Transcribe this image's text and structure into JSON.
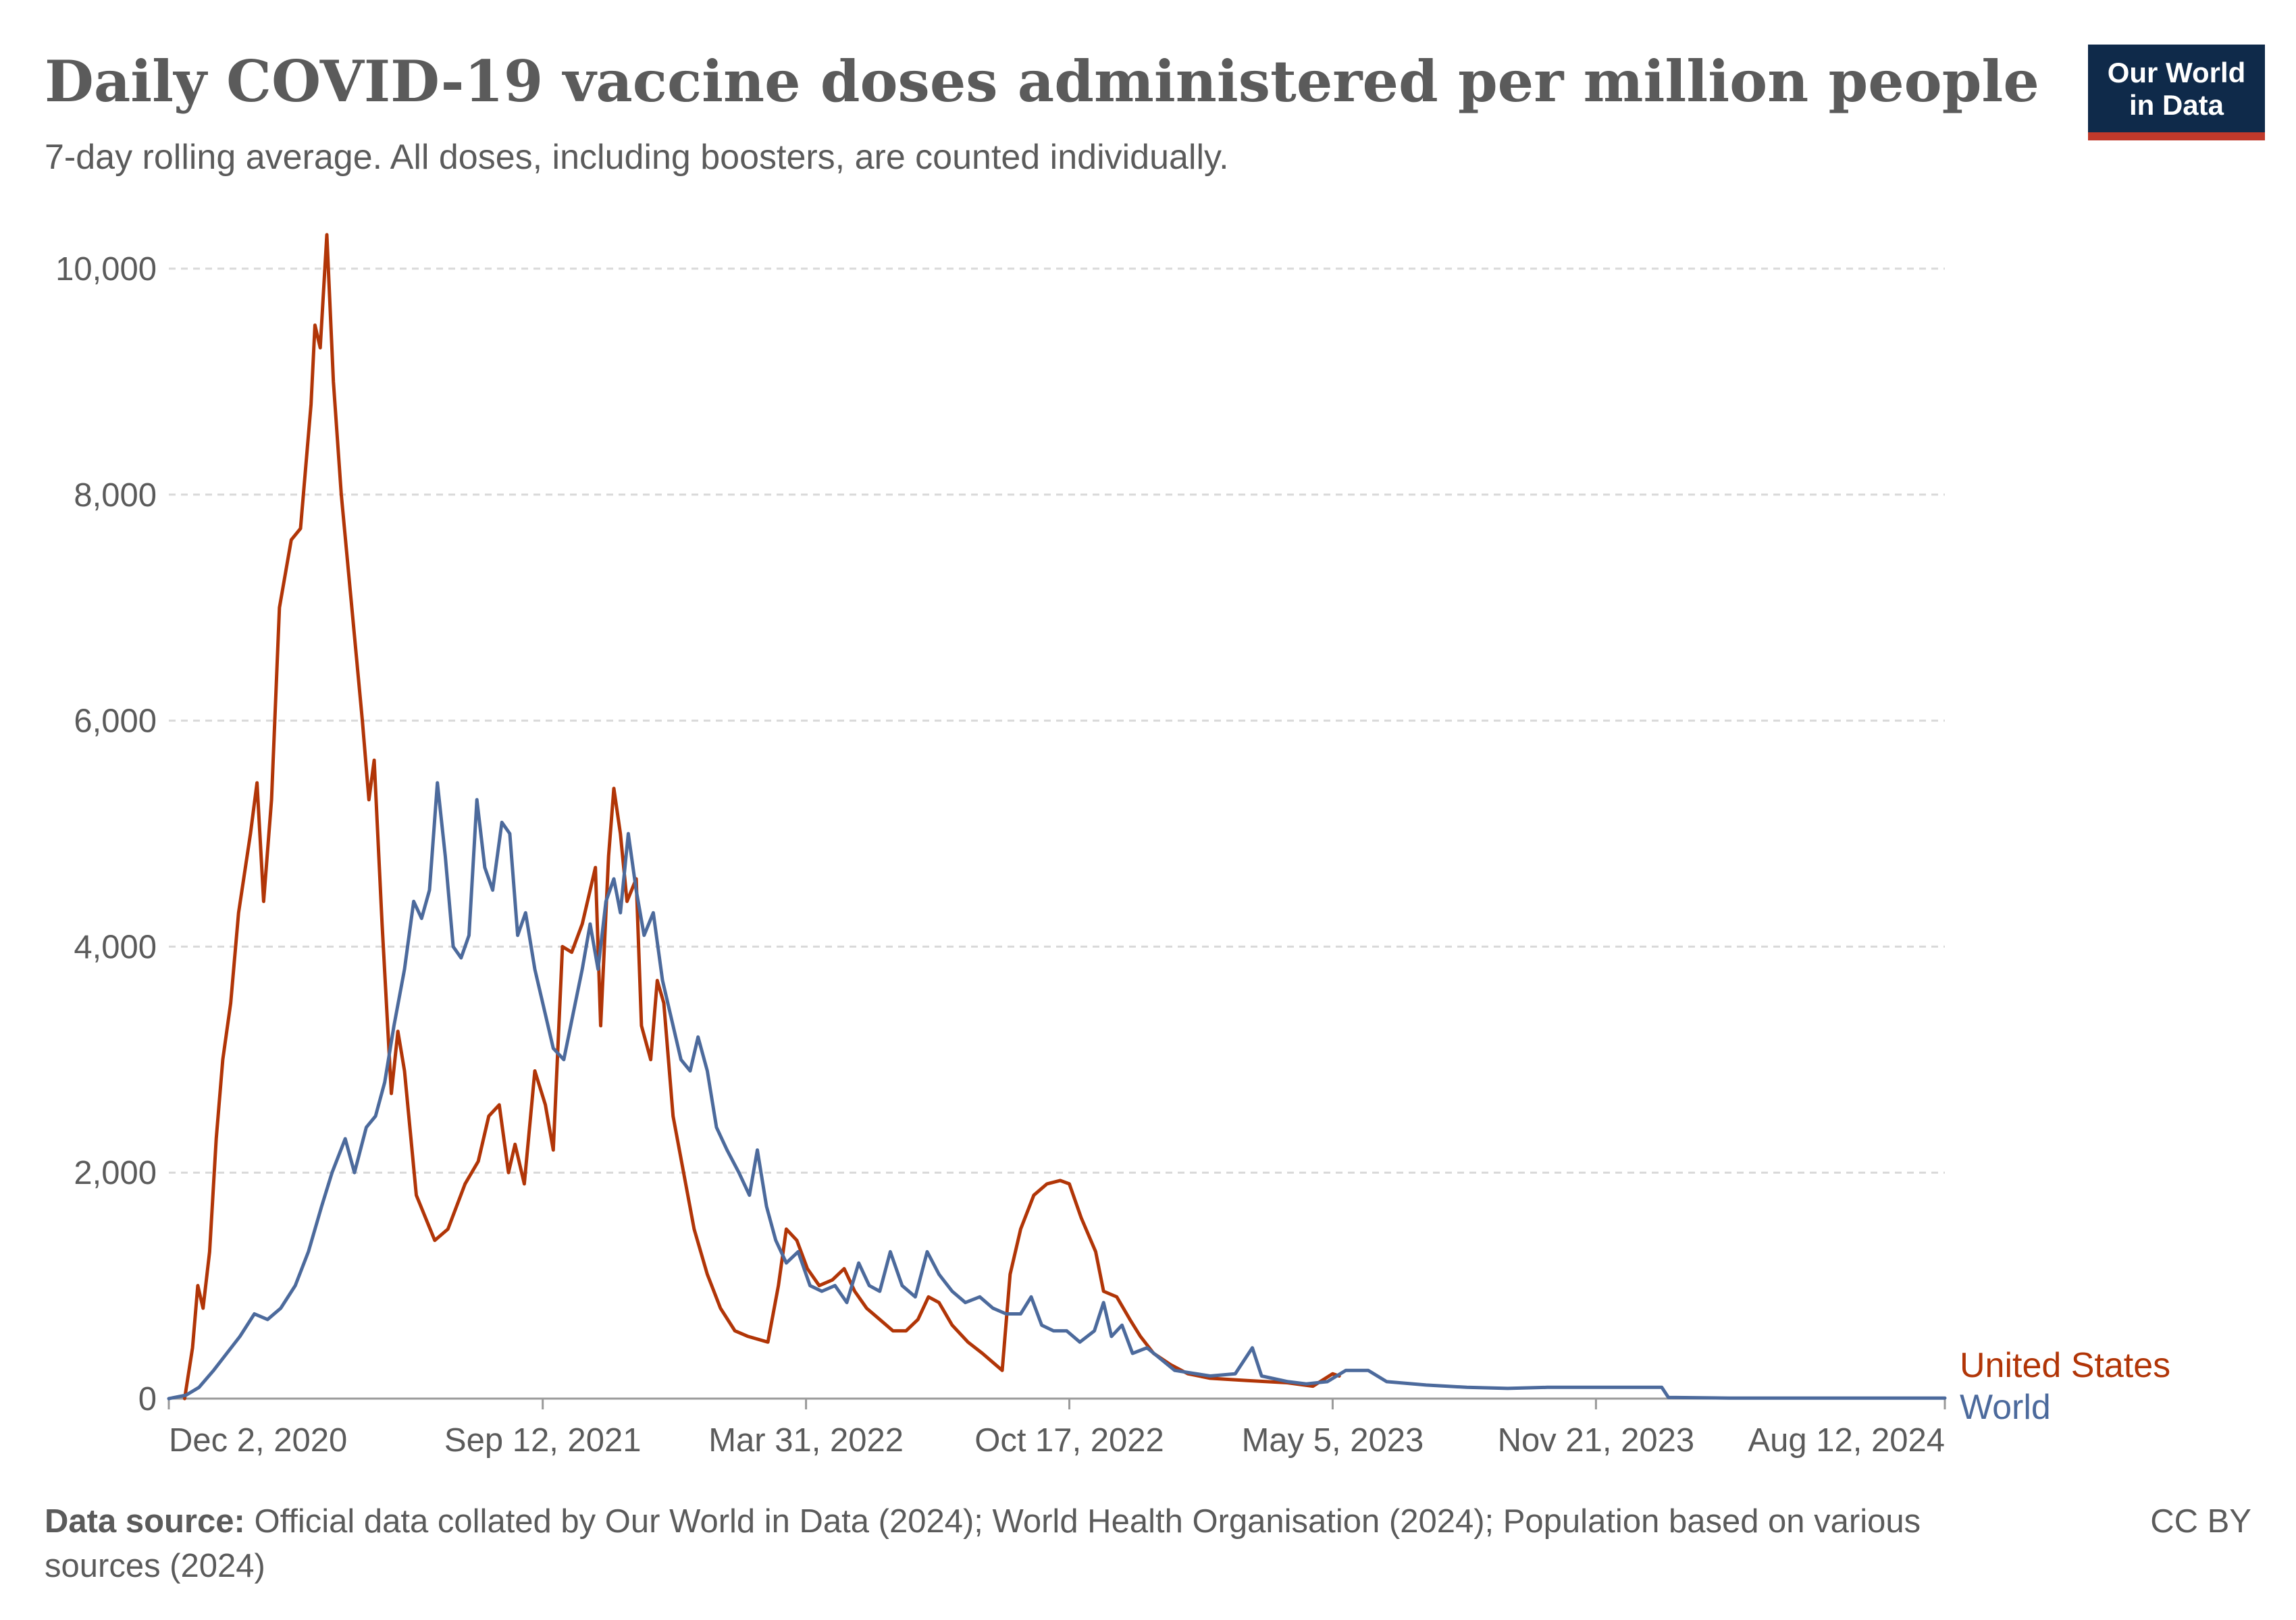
{
  "header": {
    "title": "Daily COVID-19 vaccine doses administered per million people",
    "subtitle": "7-day rolling average. All doses, including boosters, are counted individually."
  },
  "logo": {
    "line1": "Our World",
    "line2": "in Data",
    "background": "#0f2a4a",
    "accent": "#c0392b"
  },
  "footer": {
    "source_label": "Data source:",
    "source_line1": "Official data collated by Our World in Data (2024); World Health Organisation (2024); Population based on various",
    "source_line2": "sources (2024)",
    "license": "CC BY"
  },
  "chart_data": {
    "type": "line",
    "xlim": [
      "2020-12-02",
      "2024-08-12"
    ],
    "ylim": [
      0,
      10000
    ],
    "x_ticks": [
      "Dec 2, 2020",
      "Sep 12, 2021",
      "Mar 31, 2022",
      "Oct 17, 2022",
      "May 5, 2023",
      "Nov 21, 2023",
      "Aug 12, 2024"
    ],
    "x_tick_dates": [
      "2020-12-02",
      "2021-09-12",
      "2022-03-31",
      "2022-10-17",
      "2023-05-05",
      "2023-11-21",
      "2024-08-12"
    ],
    "y_ticks": [
      0,
      2000,
      4000,
      6000,
      8000,
      10000
    ],
    "y_tick_labels": [
      "0",
      "2,000",
      "4,000",
      "6,000",
      "8,000",
      "10,000"
    ],
    "grid": "horizontal dashed",
    "legend": "right end of lines",
    "series": [
      {
        "name": "United States",
        "color": "#b13507",
        "points": [
          [
            "2020-12-14",
            0
          ],
          [
            "2020-12-20",
            450
          ],
          [
            "2020-12-24",
            1000
          ],
          [
            "2020-12-28",
            800
          ],
          [
            "2021-01-02",
            1300
          ],
          [
            "2021-01-07",
            2300
          ],
          [
            "2021-01-12",
            3000
          ],
          [
            "2021-01-18",
            3500
          ],
          [
            "2021-01-24",
            4300
          ],
          [
            "2021-02-02",
            5000
          ],
          [
            "2021-02-07",
            5450
          ],
          [
            "2021-02-12",
            4400
          ],
          [
            "2021-02-18",
            5300
          ],
          [
            "2021-02-24",
            7000
          ],
          [
            "2021-03-05",
            7600
          ],
          [
            "2021-03-12",
            7700
          ],
          [
            "2021-03-20",
            8800
          ],
          [
            "2021-03-23",
            9500
          ],
          [
            "2021-03-27",
            9300
          ],
          [
            "2021-04-01",
            10300
          ],
          [
            "2021-04-06",
            9000
          ],
          [
            "2021-04-12",
            8000
          ],
          [
            "2021-04-20",
            7000
          ],
          [
            "2021-04-28",
            6000
          ],
          [
            "2021-05-03",
            5300
          ],
          [
            "2021-05-07",
            5650
          ],
          [
            "2021-05-13",
            4200
          ],
          [
            "2021-05-20",
            2700
          ],
          [
            "2021-05-25",
            3250
          ],
          [
            "2021-05-30",
            2900
          ],
          [
            "2021-06-08",
            1800
          ],
          [
            "2021-06-22",
            1400
          ],
          [
            "2021-07-02",
            1500
          ],
          [
            "2021-07-15",
            1900
          ],
          [
            "2021-07-25",
            2100
          ],
          [
            "2021-08-02",
            2500
          ],
          [
            "2021-08-10",
            2600
          ],
          [
            "2021-08-17",
            2000
          ],
          [
            "2021-08-22",
            2250
          ],
          [
            "2021-08-29",
            1900
          ],
          [
            "2021-09-06",
            2900
          ],
          [
            "2021-09-14",
            2600
          ],
          [
            "2021-09-20",
            2200
          ],
          [
            "2021-09-27",
            4000
          ],
          [
            "2021-10-04",
            3950
          ],
          [
            "2021-10-12",
            4200
          ],
          [
            "2021-10-18",
            4500
          ],
          [
            "2021-10-22",
            4700
          ],
          [
            "2021-10-26",
            3300
          ],
          [
            "2021-11-01",
            4800
          ],
          [
            "2021-11-05",
            5400
          ],
          [
            "2021-11-10",
            5000
          ],
          [
            "2021-11-15",
            4400
          ],
          [
            "2021-11-22",
            4600
          ],
          [
            "2021-11-26",
            3300
          ],
          [
            "2021-12-03",
            3000
          ],
          [
            "2021-12-08",
            3700
          ],
          [
            "2021-12-13",
            3500
          ],
          [
            "2021-12-20",
            2500
          ],
          [
            "2021-12-28",
            2000
          ],
          [
            "2022-01-05",
            1500
          ],
          [
            "2022-01-15",
            1100
          ],
          [
            "2022-01-25",
            800
          ],
          [
            "2022-02-05",
            600
          ],
          [
            "2022-02-15",
            550
          ],
          [
            "2022-03-02",
            500
          ],
          [
            "2022-03-10",
            1000
          ],
          [
            "2022-03-16",
            1500
          ],
          [
            "2022-03-24",
            1400
          ],
          [
            "2022-04-01",
            1150
          ],
          [
            "2022-04-10",
            1000
          ],
          [
            "2022-04-20",
            1050
          ],
          [
            "2022-04-29",
            1150
          ],
          [
            "2022-05-07",
            950
          ],
          [
            "2022-05-16",
            800
          ],
          [
            "2022-05-26",
            700
          ],
          [
            "2022-06-05",
            600
          ],
          [
            "2022-06-15",
            600
          ],
          [
            "2022-06-24",
            700
          ],
          [
            "2022-07-02",
            900
          ],
          [
            "2022-07-10",
            850
          ],
          [
            "2022-07-20",
            650
          ],
          [
            "2022-08-01",
            500
          ],
          [
            "2022-08-12",
            400
          ],
          [
            "2022-08-22",
            300
          ],
          [
            "2022-08-27",
            250
          ],
          [
            "2022-09-02",
            1100
          ],
          [
            "2022-09-10",
            1500
          ],
          [
            "2022-09-20",
            1800
          ],
          [
            "2022-09-30",
            1900
          ],
          [
            "2022-10-10",
            1930
          ],
          [
            "2022-10-17",
            1900
          ],
          [
            "2022-10-26",
            1600
          ],
          [
            "2022-11-06",
            1300
          ],
          [
            "2022-11-12",
            950
          ],
          [
            "2022-11-22",
            900
          ],
          [
            "2022-12-02",
            700
          ],
          [
            "2022-12-10",
            550
          ],
          [
            "2022-12-20",
            400
          ],
          [
            "2023-01-02",
            300
          ],
          [
            "2023-01-15",
            220
          ],
          [
            "2023-02-01",
            180
          ],
          [
            "2023-03-01",
            160
          ],
          [
            "2023-04-01",
            140
          ],
          [
            "2023-04-20",
            110
          ],
          [
            "2023-05-05",
            220
          ],
          [
            "2023-05-10",
            200
          ]
        ]
      },
      {
        "name": "World",
        "color": "#4c6a9c",
        "points": [
          [
            "2020-12-02",
            0
          ],
          [
            "2020-12-15",
            30
          ],
          [
            "2020-12-25",
            100
          ],
          [
            "2021-01-05",
            250
          ],
          [
            "2021-01-15",
            400
          ],
          [
            "2021-01-25",
            550
          ],
          [
            "2021-02-05",
            750
          ],
          [
            "2021-02-15",
            700
          ],
          [
            "2021-02-25",
            800
          ],
          [
            "2021-03-08",
            1000
          ],
          [
            "2021-03-18",
            1300
          ],
          [
            "2021-03-28",
            1700
          ],
          [
            "2021-04-05",
            2000
          ],
          [
            "2021-04-15",
            2300
          ],
          [
            "2021-04-22",
            2000
          ],
          [
            "2021-05-01",
            2400
          ],
          [
            "2021-05-08",
            2500
          ],
          [
            "2021-05-15",
            2800
          ],
          [
            "2021-05-22",
            3300
          ],
          [
            "2021-05-30",
            3800
          ],
          [
            "2021-06-06",
            4400
          ],
          [
            "2021-06-12",
            4250
          ],
          [
            "2021-06-18",
            4500
          ],
          [
            "2021-06-24",
            5450
          ],
          [
            "2021-06-30",
            4800
          ],
          [
            "2021-07-06",
            4000
          ],
          [
            "2021-07-12",
            3900
          ],
          [
            "2021-07-18",
            4100
          ],
          [
            "2021-07-24",
            5300
          ],
          [
            "2021-07-30",
            4700
          ],
          [
            "2021-08-05",
            4500
          ],
          [
            "2021-08-12",
            5100
          ],
          [
            "2021-08-18",
            5000
          ],
          [
            "2021-08-24",
            4100
          ],
          [
            "2021-08-30",
            4300
          ],
          [
            "2021-09-06",
            3800
          ],
          [
            "2021-09-14",
            3400
          ],
          [
            "2021-09-20",
            3100
          ],
          [
            "2021-09-28",
            3000
          ],
          [
            "2021-10-05",
            3400
          ],
          [
            "2021-10-12",
            3800
          ],
          [
            "2021-10-18",
            4200
          ],
          [
            "2021-10-24",
            3800
          ],
          [
            "2021-10-30",
            4400
          ],
          [
            "2021-11-05",
            4600
          ],
          [
            "2021-11-10",
            4300
          ],
          [
            "2021-11-16",
            5000
          ],
          [
            "2021-11-22",
            4500
          ],
          [
            "2021-11-28",
            4100
          ],
          [
            "2021-12-05",
            4300
          ],
          [
            "2021-12-12",
            3700
          ],
          [
            "2021-12-20",
            3300
          ],
          [
            "2021-12-26",
            3000
          ],
          [
            "2022-01-02",
            2900
          ],
          [
            "2022-01-08",
            3200
          ],
          [
            "2022-01-15",
            2900
          ],
          [
            "2022-01-22",
            2400
          ],
          [
            "2022-01-30",
            2200
          ],
          [
            "2022-02-08",
            2000
          ],
          [
            "2022-02-16",
            1800
          ],
          [
            "2022-02-22",
            2200
          ],
          [
            "2022-03-01",
            1700
          ],
          [
            "2022-03-08",
            1400
          ],
          [
            "2022-03-16",
            1200
          ],
          [
            "2022-03-25",
            1300
          ],
          [
            "2022-04-03",
            1000
          ],
          [
            "2022-04-12",
            950
          ],
          [
            "2022-04-22",
            1000
          ],
          [
            "2022-05-01",
            850
          ],
          [
            "2022-05-10",
            1200
          ],
          [
            "2022-05-18",
            1000
          ],
          [
            "2022-05-26",
            950
          ],
          [
            "2022-06-03",
            1300
          ],
          [
            "2022-06-12",
            1000
          ],
          [
            "2022-06-22",
            900
          ],
          [
            "2022-07-01",
            1300
          ],
          [
            "2022-07-10",
            1100
          ],
          [
            "2022-07-20",
            950
          ],
          [
            "2022-07-30",
            850
          ],
          [
            "2022-08-10",
            900
          ],
          [
            "2022-08-20",
            800
          ],
          [
            "2022-08-30",
            750
          ],
          [
            "2022-09-10",
            750
          ],
          [
            "2022-09-18",
            900
          ],
          [
            "2022-09-26",
            650
          ],
          [
            "2022-10-05",
            600
          ],
          [
            "2022-10-15",
            600
          ],
          [
            "2022-10-25",
            500
          ],
          [
            "2022-11-05",
            600
          ],
          [
            "2022-11-12",
            850
          ],
          [
            "2022-11-18",
            550
          ],
          [
            "2022-11-26",
            650
          ],
          [
            "2022-12-04",
            400
          ],
          [
            "2022-12-15",
            450
          ],
          [
            "2023-01-05",
            250
          ],
          [
            "2023-02-01",
            200
          ],
          [
            "2023-02-20",
            220
          ],
          [
            "2023-03-05",
            450
          ],
          [
            "2023-03-12",
            200
          ],
          [
            "2023-04-01",
            150
          ],
          [
            "2023-04-15",
            130
          ],
          [
            "2023-05-01",
            150
          ],
          [
            "2023-05-15",
            250
          ],
          [
            "2023-06-01",
            250
          ],
          [
            "2023-06-15",
            150
          ],
          [
            "2023-07-15",
            120
          ],
          [
            "2023-08-15",
            100
          ],
          [
            "2023-09-15",
            90
          ],
          [
            "2023-10-15",
            100
          ],
          [
            "2023-11-15",
            100
          ],
          [
            "2023-12-15",
            100
          ],
          [
            "2024-01-10",
            100
          ],
          [
            "2024-01-15",
            10
          ],
          [
            "2024-03-01",
            5
          ],
          [
            "2024-08-12",
            5
          ]
        ]
      }
    ]
  }
}
